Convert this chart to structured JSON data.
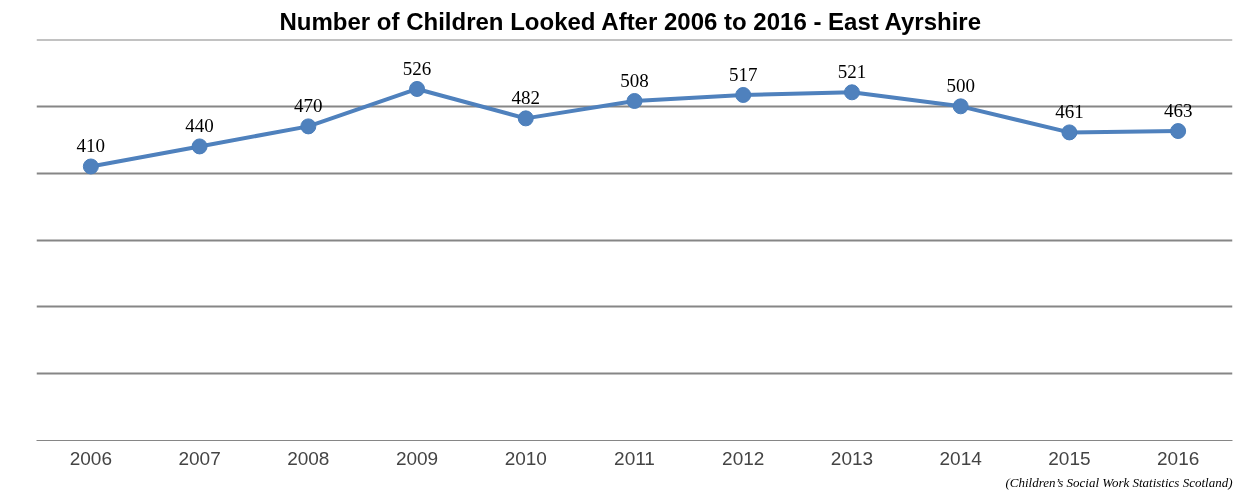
{
  "chart_data": {
    "type": "line",
    "title": "Number of  Children Looked After 2006 to 2016 - East Ayrshire",
    "categories": [
      "2006",
      "2007",
      "2008",
      "2009",
      "2010",
      "2011",
      "2012",
      "2013",
      "2014",
      "2015",
      "2016"
    ],
    "series": [
      {
        "color": "#4f81bd",
        "values": [
          410,
          440,
          470,
          526,
          482,
          508,
          517,
          521,
          500,
          461,
          463
        ]
      }
    ],
    "ylim": [
      0,
      600
    ],
    "yticks": [
      {
        "value": 0,
        "label": null
      },
      {
        "value": 100,
        "label": null
      },
      {
        "value": 200,
        "label": null
      },
      {
        "value": 300,
        "label": null
      },
      {
        "value": 400,
        "label": null
      },
      {
        "value": 500,
        "label": null
      },
      {
        "value": 600,
        "label": null
      }
    ],
    "tick_labels": "x",
    "grid": "y",
    "data_labels": true,
    "marker": "circle",
    "line_style": "solid",
    "annotations": [
      "(Children’s Social Work Statistics Scotland)"
    ]
  }
}
